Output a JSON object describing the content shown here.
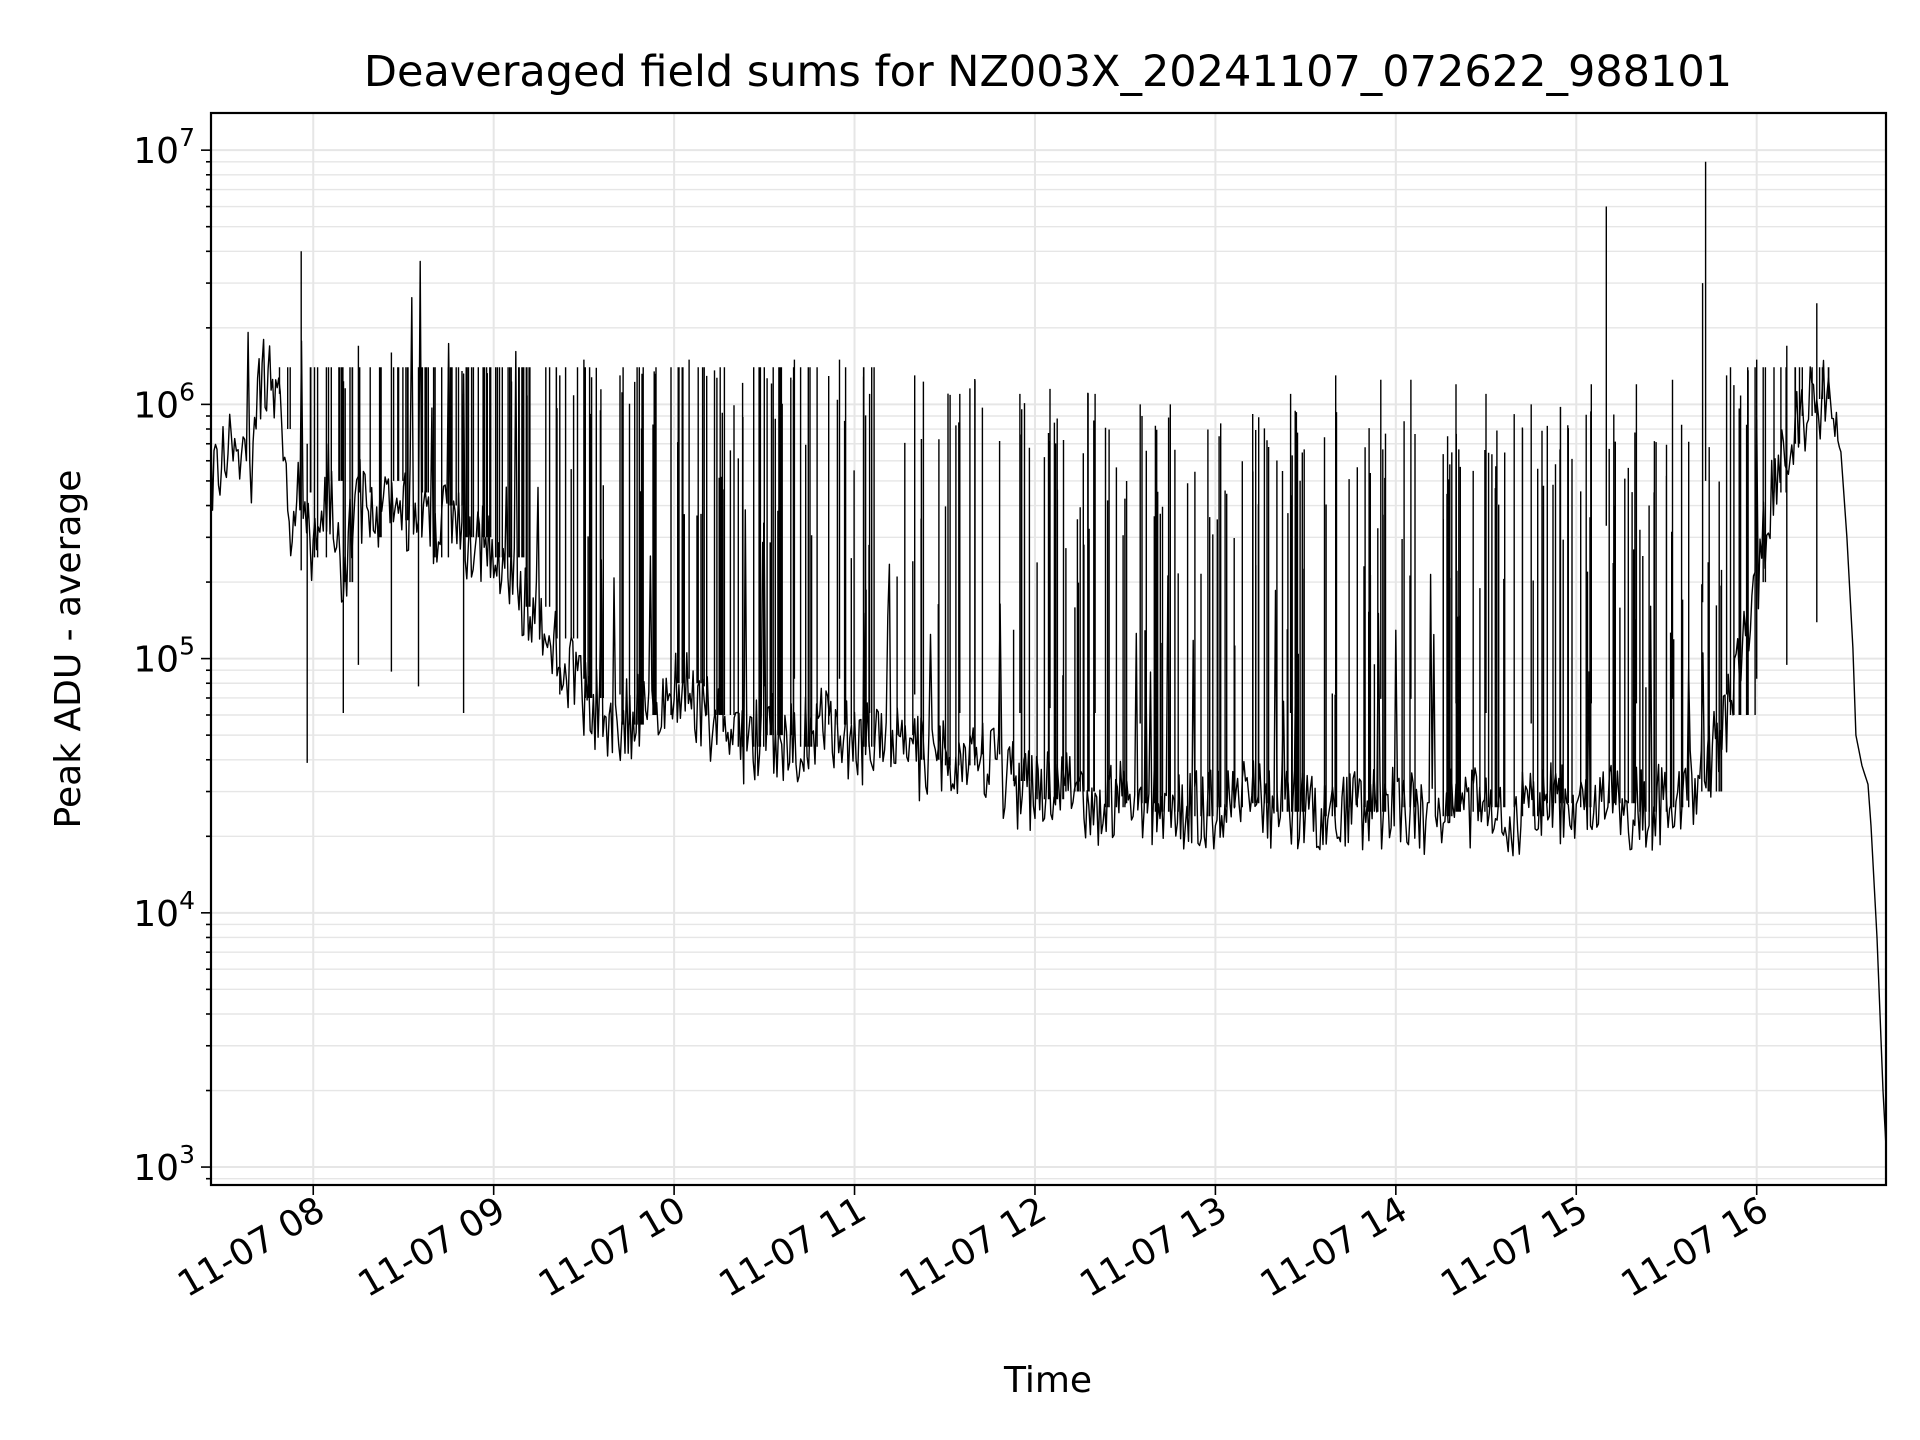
{
  "chart_data": {
    "type": "line",
    "title": "Deaveraged field sums for NZ003X_20241107_072622_988101",
    "xlabel": "Time",
    "ylabel": "Peak ADU - average",
    "yscale": "log",
    "grid": true,
    "grid_minor": true,
    "xlim": [
      "2024-11-07 07:26",
      "2024-11-07 16:43"
    ],
    "ylim": [
      850,
      14000000
    ],
    "x_ticks": [
      {
        "value": "2024-11-07 08:00",
        "label": "11-07 08"
      },
      {
        "value": "2024-11-07 09:00",
        "label": "11-07 09"
      },
      {
        "value": "2024-11-07 10:00",
        "label": "11-07 10"
      },
      {
        "value": "2024-11-07 11:00",
        "label": "11-07 11"
      },
      {
        "value": "2024-11-07 12:00",
        "label": "11-07 12"
      },
      {
        "value": "2024-11-07 13:00",
        "label": "11-07 13"
      },
      {
        "value": "2024-11-07 14:00",
        "label": "11-07 14"
      },
      {
        "value": "2024-11-07 15:00",
        "label": "11-07 15"
      },
      {
        "value": "2024-11-07 16:00",
        "label": "11-07 16"
      }
    ],
    "y_ticks": [
      {
        "value": 1000,
        "base": "10",
        "exp": "3"
      },
      {
        "value": 10000,
        "base": "10",
        "exp": "4"
      },
      {
        "value": 100000,
        "base": "10",
        "exp": "5"
      },
      {
        "value": 1000000,
        "base": "10",
        "exp": "6"
      },
      {
        "value": 10000000,
        "base": "10",
        "exp": "7"
      }
    ],
    "series": [
      {
        "color": "#000000",
        "points": [
          [
            "2024-11-07 07:26",
            500000
          ],
          [
            "2024-11-07 07:30",
            650000
          ],
          [
            "2024-11-07 07:35",
            560000
          ],
          [
            "2024-11-07 07:40",
            600000
          ],
          [
            "2024-11-07 07:43",
            1400000
          ],
          [
            "2024-11-07 07:46",
            1100000
          ],
          [
            "2024-11-07 07:50",
            800000
          ],
          [
            "2024-11-07 07:53",
            300000
          ],
          [
            "2024-11-07 07:55",
            450000
          ],
          [
            "2024-11-07 08:00",
            250000
          ],
          [
            "2024-11-07 08:05",
            500000
          ],
          [
            "2024-11-07 08:10",
            200000
          ],
          [
            "2024-11-07 08:15",
            450000
          ],
          [
            "2024-11-07 08:20",
            300000
          ],
          [
            "2024-11-07 08:25",
            500000
          ],
          [
            "2024-11-07 08:30",
            350000
          ],
          [
            "2024-11-07 08:35",
            450000
          ],
          [
            "2024-11-07 08:40",
            250000
          ],
          [
            "2024-11-07 08:45",
            400000
          ],
          [
            "2024-11-07 08:50",
            300000
          ],
          [
            "2024-11-07 09:00",
            250000
          ],
          [
            "2024-11-07 09:10",
            160000
          ],
          [
            "2024-11-07 09:20",
            120000
          ],
          [
            "2024-11-07 09:30",
            70000
          ],
          [
            "2024-11-07 09:40",
            55000
          ],
          [
            "2024-11-07 09:50",
            60000
          ],
          [
            "2024-11-07 10:00",
            80000
          ],
          [
            "2024-11-07 10:10",
            60000
          ],
          [
            "2024-11-07 10:20",
            45000
          ],
          [
            "2024-11-07 10:30",
            50000
          ],
          [
            "2024-11-07 10:40",
            45000
          ],
          [
            "2024-11-07 10:50",
            55000
          ],
          [
            "2024-11-07 11:00",
            45000
          ],
          [
            "2024-11-07 11:10",
            50000
          ],
          [
            "2024-11-07 11:20",
            40000
          ],
          [
            "2024-11-07 11:30",
            38000
          ],
          [
            "2024-11-07 11:40",
            42000
          ],
          [
            "2024-11-07 11:50",
            33000
          ],
          [
            "2024-11-07 12:00",
            28000
          ],
          [
            "2024-11-07 12:10",
            30000
          ],
          [
            "2024-11-07 12:20",
            26000
          ],
          [
            "2024-11-07 12:30",
            27000
          ],
          [
            "2024-11-07 12:40",
            25000
          ],
          [
            "2024-11-07 12:50",
            24000
          ],
          [
            "2024-11-07 13:00",
            26000
          ],
          [
            "2024-11-07 13:10",
            27000
          ],
          [
            "2024-11-07 13:20",
            25000
          ],
          [
            "2024-11-07 13:30",
            24000
          ],
          [
            "2024-11-07 13:40",
            26000
          ],
          [
            "2024-11-07 13:50",
            25000
          ],
          [
            "2024-11-07 14:00",
            26000
          ],
          [
            "2024-11-07 14:10",
            24000
          ],
          [
            "2024-11-07 14:20",
            25000
          ],
          [
            "2024-11-07 14:30",
            26000
          ],
          [
            "2024-11-07 14:40",
            24000
          ],
          [
            "2024-11-07 14:50",
            27000
          ],
          [
            "2024-11-07 15:00",
            26000
          ],
          [
            "2024-11-07 15:10",
            27000
          ],
          [
            "2024-11-07 15:20",
            25000
          ],
          [
            "2024-11-07 15:30",
            26000
          ],
          [
            "2024-11-07 15:40",
            30000
          ],
          [
            "2024-11-07 15:50",
            60000
          ],
          [
            "2024-11-07 16:00",
            200000
          ],
          [
            "2024-11-07 16:05",
            450000
          ],
          [
            "2024-11-07 16:10",
            700000
          ],
          [
            "2024-11-07 16:15",
            900000
          ],
          [
            "2024-11-07 16:20",
            1050000
          ],
          [
            "2024-11-07 16:25",
            950000
          ],
          [
            "2024-11-07 16:28",
            650000
          ],
          [
            "2024-11-07 16:30",
            300000
          ],
          [
            "2024-11-07 16:32",
            110000
          ],
          [
            "2024-11-07 16:33",
            50000
          ],
          [
            "2024-11-07 16:35",
            38000
          ],
          [
            "2024-11-07 16:37",
            32000
          ],
          [
            "2024-11-07 16:38",
            22000
          ],
          [
            "2024-11-07 16:40",
            8000
          ],
          [
            "2024-11-07 16:42",
            2000
          ],
          [
            "2024-11-07 16:43",
            1200
          ]
        ],
        "spikes": [
          [
            "2024-11-07 07:56",
            4000000
          ],
          [
            "2024-11-07 07:58",
            700000
          ],
          [
            "2024-11-07 08:10",
            1100000
          ],
          [
            "2024-11-07 08:15",
            1700000
          ],
          [
            "2024-11-07 08:26",
            1600000
          ],
          [
            "2024-11-07 08:35",
            1400000
          ],
          [
            "2024-11-07 08:50",
            1100000
          ],
          [
            "2024-11-07 09:22",
            1300000
          ],
          [
            "2024-11-07 09:30",
            1500000
          ],
          [
            "2024-11-07 09:42",
            1300000
          ],
          [
            "2024-11-07 10:05",
            1500000
          ],
          [
            "2024-11-07 10:10",
            1400000
          ],
          [
            "2024-11-07 10:30",
            1400000
          ],
          [
            "2024-11-07 10:40",
            1500000
          ],
          [
            "2024-11-07 10:55",
            1500000
          ],
          [
            "2024-11-07 11:05",
            1100000
          ],
          [
            "2024-11-07 11:20",
            1300000
          ],
          [
            "2024-11-07 11:35",
            1100000
          ],
          [
            "2024-11-07 11:40",
            1000000
          ],
          [
            "2024-11-07 11:55",
            1100000
          ],
          [
            "2024-11-07 12:05",
            1150000
          ],
          [
            "2024-11-07 12:20",
            1100000
          ],
          [
            "2024-11-07 12:35",
            1000000
          ],
          [
            "2024-11-07 12:45",
            1000000
          ],
          [
            "2024-11-07 13:25",
            1100000
          ],
          [
            "2024-11-07 13:40",
            1300000
          ],
          [
            "2024-11-07 13:55",
            1250000
          ],
          [
            "2024-11-07 14:05",
            1250000
          ],
          [
            "2024-11-07 14:20",
            1200000
          ],
          [
            "2024-11-07 14:30",
            1100000
          ],
          [
            "2024-11-07 14:45",
            1000000
          ],
          [
            "2024-11-07 15:05",
            1200000
          ],
          [
            "2024-11-07 15:10",
            6000000
          ],
          [
            "2024-11-07 15:20",
            1200000
          ],
          [
            "2024-11-07 15:32",
            1250000
          ],
          [
            "2024-11-07 15:42",
            3000000
          ],
          [
            "2024-11-07 15:43",
            9000000
          ],
          [
            "2024-11-07 15:50",
            1300000
          ],
          [
            "2024-11-07 16:00",
            1500000
          ],
          [
            "2024-11-07 16:10",
            1700000
          ],
          [
            "2024-11-07 16:20",
            2500000
          ]
        ]
      }
    ]
  }
}
